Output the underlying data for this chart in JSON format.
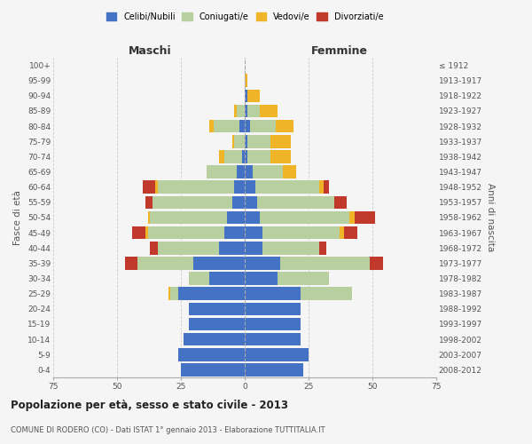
{
  "age_groups": [
    "0-4",
    "5-9",
    "10-14",
    "15-19",
    "20-24",
    "25-29",
    "30-34",
    "35-39",
    "40-44",
    "45-49",
    "50-54",
    "55-59",
    "60-64",
    "65-69",
    "70-74",
    "75-79",
    "80-84",
    "85-89",
    "90-94",
    "95-99",
    "100+"
  ],
  "birth_years": [
    "2008-2012",
    "2003-2007",
    "1998-2002",
    "1993-1997",
    "1988-1992",
    "1983-1987",
    "1978-1982",
    "1973-1977",
    "1968-1972",
    "1963-1967",
    "1958-1962",
    "1953-1957",
    "1948-1952",
    "1943-1947",
    "1938-1942",
    "1933-1937",
    "1928-1932",
    "1923-1927",
    "1918-1922",
    "1913-1917",
    "≤ 1912"
  ],
  "maschi": {
    "celibi": [
      25,
      26,
      24,
      22,
      22,
      26,
      14,
      20,
      10,
      8,
      7,
      5,
      4,
      3,
      1,
      0,
      2,
      0,
      0,
      0,
      0
    ],
    "coniugati": [
      0,
      0,
      0,
      0,
      0,
      3,
      8,
      22,
      24,
      30,
      30,
      31,
      30,
      12,
      7,
      4,
      10,
      3,
      0,
      0,
      0
    ],
    "vedovi": [
      0,
      0,
      0,
      0,
      0,
      1,
      0,
      0,
      0,
      1,
      1,
      0,
      1,
      0,
      2,
      1,
      2,
      1,
      0,
      0,
      0
    ],
    "divorziati": [
      0,
      0,
      0,
      0,
      0,
      0,
      0,
      5,
      3,
      5,
      0,
      3,
      5,
      0,
      0,
      0,
      0,
      0,
      0,
      0,
      0
    ]
  },
  "femmine": {
    "nubili": [
      23,
      25,
      22,
      22,
      22,
      22,
      13,
      14,
      7,
      7,
      6,
      5,
      4,
      3,
      1,
      1,
      2,
      1,
      1,
      0,
      0
    ],
    "coniugate": [
      0,
      0,
      0,
      0,
      0,
      20,
      20,
      35,
      22,
      30,
      35,
      30,
      25,
      12,
      9,
      9,
      10,
      5,
      0,
      0,
      0
    ],
    "vedove": [
      0,
      0,
      0,
      0,
      0,
      0,
      0,
      0,
      0,
      2,
      2,
      0,
      2,
      5,
      8,
      8,
      7,
      7,
      5,
      1,
      0
    ],
    "divorziate": [
      0,
      0,
      0,
      0,
      0,
      0,
      0,
      5,
      3,
      5,
      8,
      5,
      2,
      0,
      0,
      0,
      0,
      0,
      0,
      0,
      0
    ]
  },
  "colors": {
    "celibi": "#4472c4",
    "coniugati": "#b8cfa0",
    "vedovi": "#f0b429",
    "divorziati": "#c0392b"
  },
  "xlim": 75,
  "title": "Popolazione per età, sesso e stato civile - 2013",
  "subtitle": "COMUNE DI RODERO (CO) - Dati ISTAT 1° gennaio 2013 - Elaborazione TUTTITALIA.IT",
  "ylabel_left": "Fasce di età",
  "ylabel_right": "Anni di nascita",
  "xlabel_left": "Maschi",
  "xlabel_right": "Femmine",
  "bg_color": "#f5f5f5",
  "grid_color": "#cccccc",
  "bar_height": 0.85
}
